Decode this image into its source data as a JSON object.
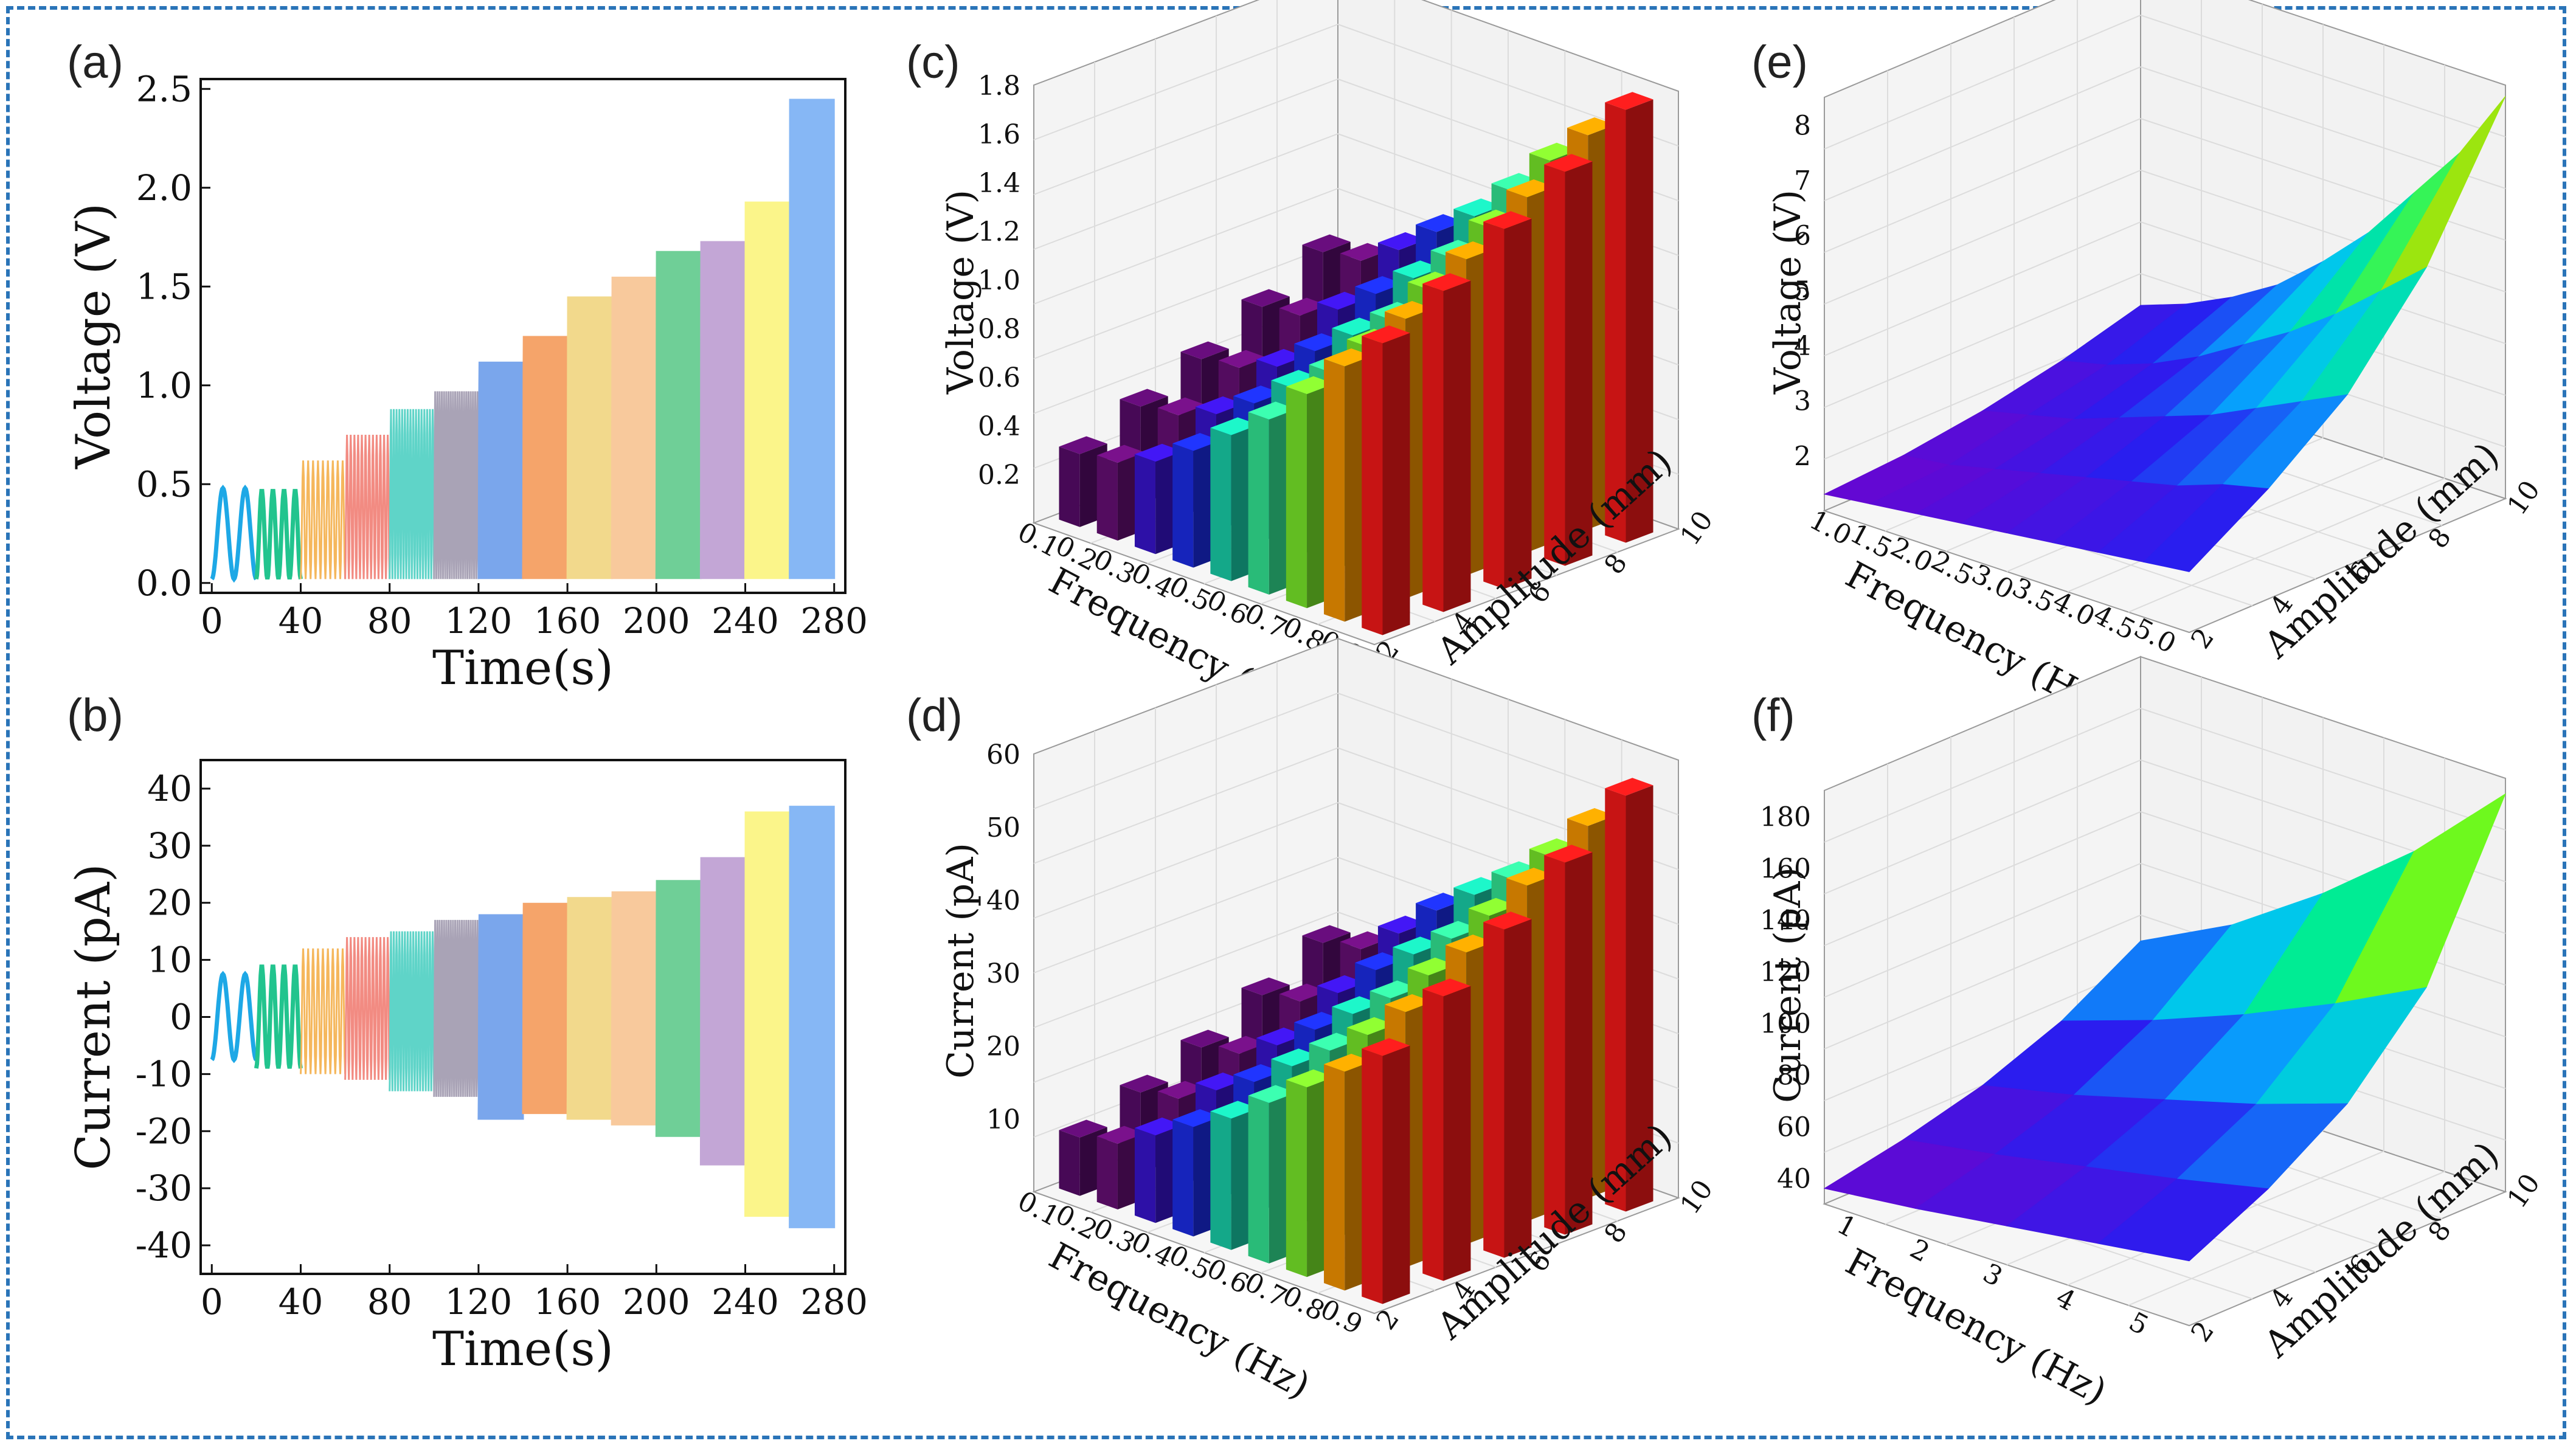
{
  "panels": {
    "a": "(a)",
    "b": "(b)",
    "c": "(c)",
    "d": "(d)",
    "e": "(e)",
    "f": "(f)"
  },
  "chart_data": [
    {
      "id": "a",
      "type": "line",
      "title": "",
      "xlabel": "Time(s)",
      "ylabel": "Voltage (V)",
      "xlim": [
        -5,
        285
      ],
      "ylim": [
        -0.05,
        2.55
      ],
      "xticks": [
        "0",
        "40",
        "80",
        "120",
        "160",
        "200",
        "240",
        "280"
      ],
      "yticks": [
        "0.0",
        "0.5",
        "1.0",
        "1.5",
        "2.0",
        "2.5"
      ],
      "segments": [
        {
          "t0": 0,
          "t1": 20,
          "min": 0.02,
          "max": 0.48,
          "cycles": 2,
          "color": "#1ea8e6"
        },
        {
          "t0": 20,
          "t1": 40,
          "min": 0.02,
          "max": 0.47,
          "cycles": 4,
          "color": "#22c48e"
        },
        {
          "t0": 40,
          "t1": 60,
          "min": 0.02,
          "max": 0.62,
          "cycles": 9,
          "color": "#f5b75c"
        },
        {
          "t0": 60,
          "t1": 80,
          "min": 0.02,
          "max": 0.75,
          "cycles": 12,
          "color": "#f28b82"
        },
        {
          "t0": 80,
          "t1": 100,
          "min": 0.02,
          "max": 0.88,
          "cycles": 16,
          "color": "#5fd4c8"
        },
        {
          "t0": 100,
          "t1": 120,
          "min": 0.02,
          "max": 0.97,
          "cycles": 20,
          "color": "#a9a3b6"
        },
        {
          "t0": 120,
          "t1": 140,
          "min": 0.02,
          "max": 1.12,
          "cycles": 25,
          "color": "#7aa6ec"
        },
        {
          "t0": 140,
          "t1": 160,
          "min": 0.02,
          "max": 1.25,
          "cycles": 30,
          "color": "#f5a46a"
        },
        {
          "t0": 160,
          "t1": 180,
          "min": 0.02,
          "max": 1.45,
          "cycles": 36,
          "color": "#f2d98c"
        },
        {
          "t0": 180,
          "t1": 200,
          "min": 0.02,
          "max": 1.55,
          "cycles": 42,
          "color": "#f8c99c"
        },
        {
          "t0": 200,
          "t1": 220,
          "min": 0.02,
          "max": 1.68,
          "cycles": 48,
          "color": "#6fcf97"
        },
        {
          "t0": 220,
          "t1": 240,
          "min": 0.02,
          "max": 1.73,
          "cycles": 55,
          "color": "#c3a6d6"
        },
        {
          "t0": 240,
          "t1": 260,
          "min": 0.02,
          "max": 1.93,
          "cycles": 62,
          "color": "#fbf58a"
        },
        {
          "t0": 260,
          "t1": 280,
          "min": 0.02,
          "max": 2.45,
          "cycles": 70,
          "color": "#86b7f5"
        }
      ]
    },
    {
      "id": "b",
      "type": "line",
      "title": "",
      "xlabel": "Time(s)",
      "ylabel": "Current (pA)",
      "xlim": [
        -5,
        285
      ],
      "ylim": [
        -45,
        45
      ],
      "xticks": [
        "0",
        "40",
        "80",
        "120",
        "160",
        "200",
        "240",
        "280"
      ],
      "yticks": [
        "40",
        "30",
        "20",
        "10",
        "0",
        "-10",
        "-20",
        "-30",
        "-40"
      ],
      "segments": [
        {
          "t0": 0,
          "t1": 20,
          "min": -7.5,
          "max": 7.5,
          "cycles": 2,
          "color": "#1ea8e6"
        },
        {
          "t0": 20,
          "t1": 40,
          "min": -9,
          "max": 9,
          "cycles": 4,
          "color": "#22c48e"
        },
        {
          "t0": 40,
          "t1": 60,
          "min": -10,
          "max": 12,
          "cycles": 9,
          "color": "#f5b75c"
        },
        {
          "t0": 60,
          "t1": 80,
          "min": -11,
          "max": 14,
          "cycles": 12,
          "color": "#f28b82"
        },
        {
          "t0": 80,
          "t1": 100,
          "min": -13,
          "max": 15,
          "cycles": 16,
          "color": "#5fd4c8"
        },
        {
          "t0": 100,
          "t1": 120,
          "min": -14,
          "max": 17,
          "cycles": 20,
          "color": "#a9a3b6"
        },
        {
          "t0": 120,
          "t1": 140,
          "min": -18,
          "max": 18,
          "cycles": 25,
          "color": "#7aa6ec"
        },
        {
          "t0": 140,
          "t1": 160,
          "min": -17,
          "max": 20,
          "cycles": 30,
          "color": "#f5a46a"
        },
        {
          "t0": 160,
          "t1": 180,
          "min": -18,
          "max": 21,
          "cycles": 36,
          "color": "#f2d98c"
        },
        {
          "t0": 180,
          "t1": 200,
          "min": -19,
          "max": 22,
          "cycles": 42,
          "color": "#f8c99c"
        },
        {
          "t0": 200,
          "t1": 220,
          "min": -21,
          "max": 24,
          "cycles": 48,
          "color": "#6fcf97"
        },
        {
          "t0": 220,
          "t1": 240,
          "min": -26,
          "max": 28,
          "cycles": 55,
          "color": "#c3a6d6"
        },
        {
          "t0": 240,
          "t1": 260,
          "min": -35,
          "max": 36,
          "cycles": 62,
          "color": "#fbf58a"
        },
        {
          "t0": 260,
          "t1": 280,
          "min": -37,
          "max": 37,
          "cycles": 70,
          "color": "#86b7f5"
        }
      ]
    },
    {
      "id": "c",
      "type": "bar3d",
      "title": "",
      "xlabel": "Frequency (Hz)",
      "ylabel": "Amplitude (mm)",
      "zlabel": "Voltage (V)",
      "zlim": [
        0,
        1.8
      ],
      "xticks": [
        "0.1",
        "0.2",
        "0.3",
        "0.4",
        "0.5",
        "0.6",
        "0.7",
        "0.8",
        "0.9"
      ],
      "yticks": [
        "2",
        "4",
        "6",
        "8",
        "10"
      ],
      "zticks": [
        "0.2",
        "0.4",
        "0.6",
        "0.8",
        "1.0",
        "1.2",
        "1.4",
        "1.6",
        "1.8"
      ],
      "x_values": [
        0.1,
        0.2,
        0.3,
        0.4,
        0.5,
        0.6,
        0.7,
        0.8,
        0.9
      ],
      "y_values": [
        2,
        4,
        6,
        8,
        10
      ],
      "values": [
        [
          0.3,
          0.4,
          0.5,
          0.62,
          0.75
        ],
        [
          0.32,
          0.42,
          0.52,
          0.64,
          0.77
        ],
        [
          0.38,
          0.48,
          0.58,
          0.72,
          0.87
        ],
        [
          0.48,
          0.58,
          0.7,
          0.84,
          1.0
        ],
        [
          0.6,
          0.7,
          0.82,
          0.96,
          1.12
        ],
        [
          0.72,
          0.82,
          0.94,
          1.1,
          1.28
        ],
        [
          0.88,
          0.98,
          1.12,
          1.28,
          1.46
        ],
        [
          1.05,
          1.15,
          1.3,
          1.46,
          1.62
        ],
        [
          1.2,
          1.32,
          1.48,
          1.62,
          1.78
        ]
      ],
      "colors": [
        "#5b0b6e",
        "#6a0f7a",
        "#3a14d6",
        "#1c2ef0",
        "#19d7b0",
        "#34f09a",
        "#7ef22c",
        "#ff9a00",
        "#ff1a1a"
      ]
    },
    {
      "id": "d",
      "type": "bar3d",
      "title": "",
      "xlabel": "Frequency (Hz)",
      "ylabel": "Amplitude (mm)",
      "zlabel": "Current (pA)",
      "zlim": [
        0,
        60
      ],
      "xticks": [
        "0.1",
        "0.2",
        "0.3",
        "0.4",
        "0.5",
        "0.6",
        "0.7",
        "0.8",
        "0.9"
      ],
      "yticks": [
        "2",
        "4",
        "6",
        "8",
        "10"
      ],
      "zticks": [
        "10",
        "20",
        "30",
        "40",
        "50",
        "60"
      ],
      "x_values": [
        0.1,
        0.2,
        0.3,
        0.4,
        0.5,
        0.6,
        0.7,
        0.8,
        0.9
      ],
      "y_values": [
        2,
        4,
        6,
        8,
        10
      ],
      "values": [
        [
          8,
          11,
          14,
          18,
          22
        ],
        [
          9,
          12,
          15,
          19,
          23
        ],
        [
          12,
          15,
          18,
          22,
          27
        ],
        [
          15,
          18,
          22,
          27,
          32
        ],
        [
          18,
          22,
          26,
          31,
          36
        ],
        [
          22,
          26,
          30,
          35,
          40
        ],
        [
          26,
          30,
          35,
          40,
          45
        ],
        [
          30,
          35,
          40,
          46,
          51
        ],
        [
          34,
          39,
          45,
          51,
          57
        ]
      ],
      "colors": [
        "#5b0b6e",
        "#6a0f7a",
        "#3a14d6",
        "#1c2ef0",
        "#19d7b0",
        "#34f09a",
        "#7ef22c",
        "#ff9a00",
        "#ff1a1a"
      ]
    },
    {
      "id": "e",
      "type": "surface3d",
      "title": "",
      "xlabel": "Frequency (Hz)",
      "ylabel": "Amplitude (mm)",
      "zlabel": "Voltage (V)",
      "zlim": [
        1,
        8.5
      ],
      "xticks": [
        "1.0",
        "1.5",
        "2.0",
        "2.5",
        "3.0",
        "3.5",
        "4.0",
        "4.5",
        "5.0"
      ],
      "yticks": [
        "2",
        "4",
        "6",
        "8",
        "10"
      ],
      "zticks": [
        "2",
        "3",
        "4",
        "5",
        "6",
        "7",
        "8"
      ],
      "x_values": [
        1.0,
        1.5,
        2.0,
        2.5,
        3.0,
        3.5,
        4.0,
        4.5,
        5.0
      ],
      "y_values": [
        2,
        4,
        6,
        8,
        10
      ],
      "values": [
        [
          1.3,
          1.4,
          1.6,
          1.9,
          2.3
        ],
        [
          1.4,
          1.5,
          1.8,
          2.1,
          2.6
        ],
        [
          1.5,
          1.7,
          2.0,
          2.4,
          3.0
        ],
        [
          1.6,
          1.9,
          2.3,
          2.8,
          3.5
        ],
        [
          1.7,
          2.1,
          2.6,
          3.3,
          4.2
        ],
        [
          1.8,
          2.3,
          2.9,
          3.8,
          5.0
        ],
        [
          1.9,
          2.5,
          3.3,
          4.4,
          6.0
        ],
        [
          2.0,
          2.8,
          3.7,
          5.1,
          7.0
        ],
        [
          2.1,
          3.0,
          4.1,
          5.8,
          8.3
        ]
      ]
    },
    {
      "id": "f",
      "type": "surface3d",
      "title": "",
      "xlabel": "Frequency (Hz)",
      "ylabel": "Amplitude (mm)",
      "zlabel": "Current (pA)",
      "zlim": [
        30,
        190
      ],
      "xticks": [
        "1",
        "2",
        "3",
        "4",
        "5"
      ],
      "yticks": [
        "2",
        "4",
        "6",
        "8",
        "10"
      ],
      "zticks": [
        "40",
        "60",
        "80",
        "100",
        "120",
        "140",
        "160",
        "180"
      ],
      "x_values": [
        1,
        2,
        3,
        4,
        5
      ],
      "y_values": [
        2,
        4,
        6,
        8,
        10
      ],
      "values": [
        [
          36,
          42,
          50,
          62,
          80
        ],
        [
          40,
          48,
          58,
          74,
          98
        ],
        [
          45,
          55,
          68,
          88,
          122
        ],
        [
          50,
          62,
          78,
          104,
          150
        ],
        [
          55,
          70,
          90,
          122,
          184
        ]
      ]
    }
  ]
}
